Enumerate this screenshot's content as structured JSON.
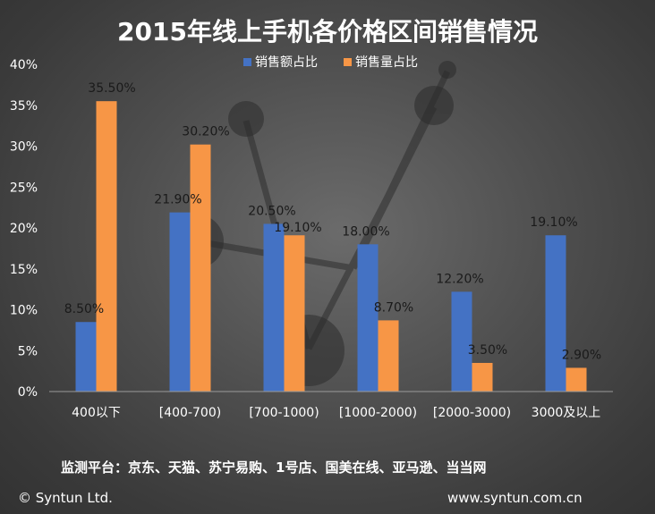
{
  "chart_data": {
    "type": "bar",
    "title": "2015年线上手机各价格区间销售情况",
    "categories": [
      "400以下",
      "[400-700)",
      "[700-1000)",
      "[1000-2000)",
      "[2000-3000)",
      "3000及以上"
    ],
    "series": [
      {
        "name": "销售额占比",
        "values": [
          8.5,
          21.9,
          20.5,
          18.0,
          12.2,
          19.1
        ],
        "labels": [
          "8.50%",
          "21.90%",
          "20.50%",
          "18.00%",
          "12.20%",
          "19.10%"
        ],
        "color": "#4472C4"
      },
      {
        "name": "销售量占比",
        "values": [
          35.5,
          30.2,
          19.1,
          8.7,
          3.5,
          2.9
        ],
        "labels": [
          "35.50%",
          "30.20%",
          "19.10%",
          "8.70%",
          "3.50%",
          "2.90%"
        ],
        "color": "#F79646"
      }
    ],
    "ylim": [
      0,
      40
    ],
    "yticks": [
      "0%",
      "5%",
      "10%",
      "15%",
      "20%",
      "25%",
      "30%",
      "35%",
      "40%"
    ],
    "xlabel": "",
    "ylabel": "",
    "legend": "top-right",
    "grid": false
  },
  "footer": {
    "source": "监测平台：京东、天猫、苏宁易购、1号店、国美在线、亚马逊、当当网",
    "copyright": "© Syntun Ltd.",
    "website": "www.syntun.com.cn"
  }
}
